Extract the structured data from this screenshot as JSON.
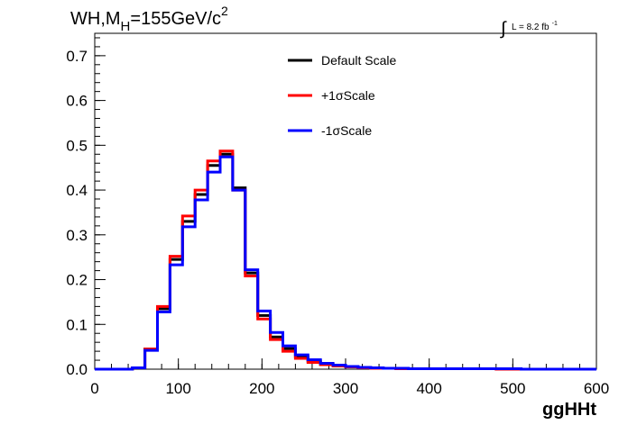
{
  "title": {
    "main": "WH,M",
    "sub": "H",
    "rest": "=155GeV/c",
    "sup": "2"
  },
  "lumi": {
    "integral": "∫",
    "text": "L = 8.2 fb",
    "sup": "-1"
  },
  "chart_data": {
    "type": "line",
    "style": "step histogram",
    "xlabel": "ggHHt",
    "ylabel": "",
    "xlim": [
      0,
      600
    ],
    "ylim": [
      0,
      0.75
    ],
    "x_ticks": [
      "0",
      "100",
      "200",
      "300",
      "400",
      "500",
      "600"
    ],
    "y_ticks": [
      "0.0",
      "0.1",
      "0.2",
      "0.3",
      "0.4",
      "0.5",
      "0.6",
      "0.7"
    ],
    "bin_width": 15,
    "bin_edges_start": 0,
    "legend_position": "top-center",
    "grid": false,
    "series": [
      {
        "name": "Default Scale",
        "color": "#000000",
        "values": [
          0,
          0,
          0,
          0.003,
          0.045,
          0.135,
          0.245,
          0.33,
          0.39,
          0.455,
          0.48,
          0.405,
          0.215,
          0.12,
          0.072,
          0.046,
          0.028,
          0.018,
          0.011,
          0.008,
          0.005,
          0.004,
          0.003,
          0.002,
          0.002,
          0.001,
          0.001,
          0.001,
          0.001,
          0.001,
          0.001,
          0.001,
          0.001,
          0,
          0,
          0,
          0,
          0,
          0,
          0
        ]
      },
      {
        "name": "+1σScale",
        "color": "#ff0000",
        "values": [
          0,
          0,
          0,
          0.003,
          0.045,
          0.14,
          0.252,
          0.342,
          0.4,
          0.465,
          0.487,
          0.4,
          0.208,
          0.112,
          0.066,
          0.04,
          0.024,
          0.015,
          0.01,
          0.007,
          0.005,
          0.003,
          0.002,
          0.002,
          0.001,
          0.001,
          0.001,
          0.001,
          0.001,
          0.001,
          0.001,
          0.001,
          0,
          0,
          0,
          0,
          0,
          0,
          0,
          0
        ]
      },
      {
        "name": "-1σScale",
        "color": "#0000ff",
        "values": [
          0,
          0,
          0,
          0.003,
          0.042,
          0.128,
          0.233,
          0.318,
          0.378,
          0.44,
          0.474,
          0.4,
          0.222,
          0.13,
          0.082,
          0.052,
          0.032,
          0.021,
          0.013,
          0.009,
          0.006,
          0.004,
          0.003,
          0.002,
          0.002,
          0.001,
          0.001,
          0.001,
          0.001,
          0.001,
          0.001,
          0.001,
          0.001,
          0.001,
          0,
          0,
          0,
          0,
          0,
          0
        ]
      }
    ]
  }
}
